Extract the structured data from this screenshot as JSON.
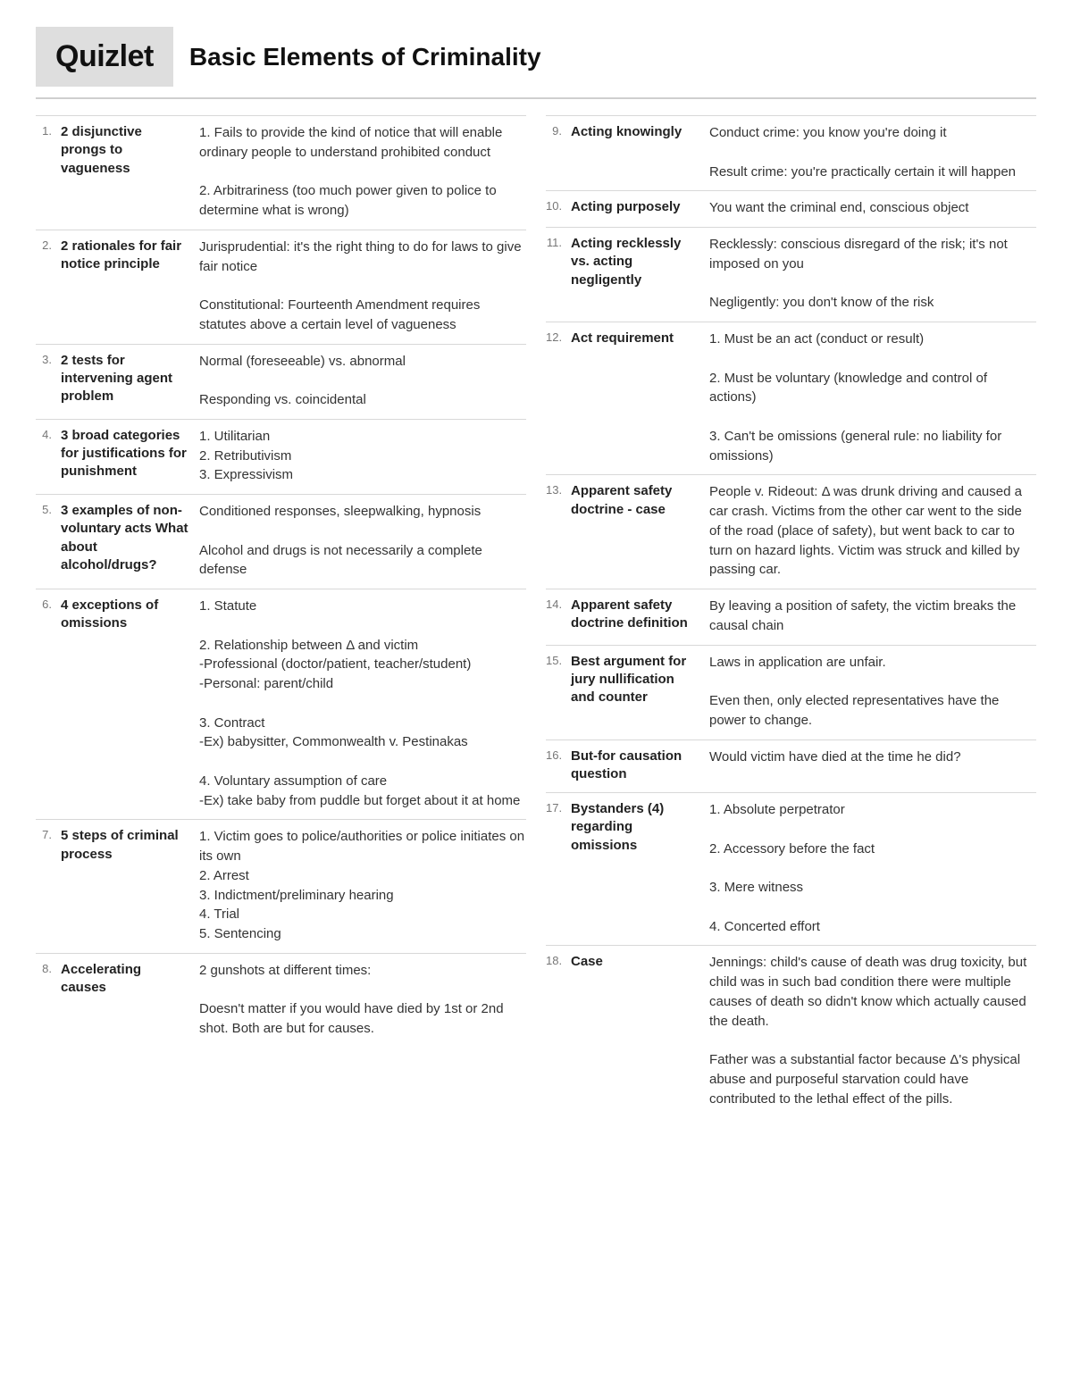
{
  "logo_text": "Quizlet",
  "page_title": "Basic Elements of Criminality",
  "colors": {
    "logo_bg": "#dedede",
    "text": "#222222",
    "num": "#777777",
    "divider": "#cfcfcf",
    "entry_border": "#d8d8d8",
    "background": "#ffffff"
  },
  "left_column": [
    {
      "num": "1.",
      "term": "2 disjunctive prongs to vagueness",
      "def": "1. Fails to provide the kind of notice that will enable ordinary people to understand prohibited conduct\n\n2. Arbitrariness (too much power given to police to determine what is wrong)"
    },
    {
      "num": "2.",
      "term": "2 rationales for fair notice principle",
      "def": "Jurisprudential: it's the right thing to do for laws to give fair notice\n\nConstitutional: Fourteenth Amendment requires statutes above a certain level of vagueness"
    },
    {
      "num": "3.",
      "term": "2 tests for intervening agent problem",
      "def": "Normal (foreseeable) vs. abnormal\n\nResponding vs. coincidental"
    },
    {
      "num": "4.",
      "term": "3 broad categories for justifications for punishment",
      "def": "1. Utilitarian\n2. Retributivism\n3. Expressivism"
    },
    {
      "num": "5.",
      "term": "3 examples of non-voluntary acts\n\nWhat about alcohol/drugs?",
      "def": "Conditioned responses, sleepwalking, hypnosis\n\nAlcohol and drugs is not necessarily a complete defense"
    },
    {
      "num": "6.",
      "term": "4 exceptions of omissions",
      "def": "1. Statute\n\n2. Relationship between Δ and victim\n-Professional (doctor/patient, teacher/student)\n-Personal: parent/child\n\n3. Contract\n-Ex) babysitter, Commonwealth v. Pestinakas\n\n4. Voluntary assumption of care\n-Ex) take baby from puddle but forget about it at home"
    },
    {
      "num": "7.",
      "term": "5 steps of criminal process",
      "def": "1. Victim goes to police/authorities or police initiates on its own\n2. Arrest\n3. Indictment/preliminary hearing\n4. Trial\n5. Sentencing"
    },
    {
      "num": "8.",
      "term": "Accelerating causes",
      "def": "2 gunshots at different times:\n\nDoesn't matter if you would have died by 1st or 2nd shot. Both are but for causes."
    }
  ],
  "right_column": [
    {
      "num": "9.",
      "term": "Acting knowingly",
      "def": "Conduct crime: you know you're doing it\n\nResult crime: you're practically certain it will happen"
    },
    {
      "num": "10.",
      "term": "Acting purposely",
      "def": "You want the criminal end, conscious object"
    },
    {
      "num": "11.",
      "term": "Acting recklessly vs. acting negligently",
      "def": "Recklessly: conscious disregard of the risk; it's not imposed on you\n\nNegligently: you don't know of the risk"
    },
    {
      "num": "12.",
      "term": "Act requirement",
      "def": "1. Must be an act (conduct or result)\n\n2. Must be voluntary (knowledge and control of actions)\n\n3. Can't be omissions (general rule: no liability for omissions)"
    },
    {
      "num": "13.",
      "term": "Apparent safety doctrine - case",
      "def": "People v. Rideout: Δ was drunk driving and caused a car crash. Victims from the other car went to the side of the road (place of safety), but went back to car to turn on hazard lights. Victim was struck and killed by passing car."
    },
    {
      "num": "14.",
      "term": "Apparent safety doctrine definition",
      "def": "By leaving a position of safety, the victim breaks the causal chain"
    },
    {
      "num": "15.",
      "term": "Best argument for jury nullification and counter",
      "def": "Laws in application are unfair.\n\nEven then, only elected representatives have the power to change."
    },
    {
      "num": "16.",
      "term": "But-for causation question",
      "def": "Would victim have died at the time he did?"
    },
    {
      "num": "17.",
      "term": "Bystanders (4) regarding omissions",
      "def": "1. Absolute perpetrator\n\n2. Accessory before the fact\n\n3. Mere witness\n\n4. Concerted effort"
    },
    {
      "num": "18.",
      "term": "Case",
      "def": "Jennings: child's cause of death was drug toxicity, but child was in such bad condition there were multiple causes of death so didn't know which actually caused the death.\n\nFather was a substantial factor because Δ's physical abuse and purposeful starvation could have contributed to the lethal effect of the pills."
    }
  ]
}
